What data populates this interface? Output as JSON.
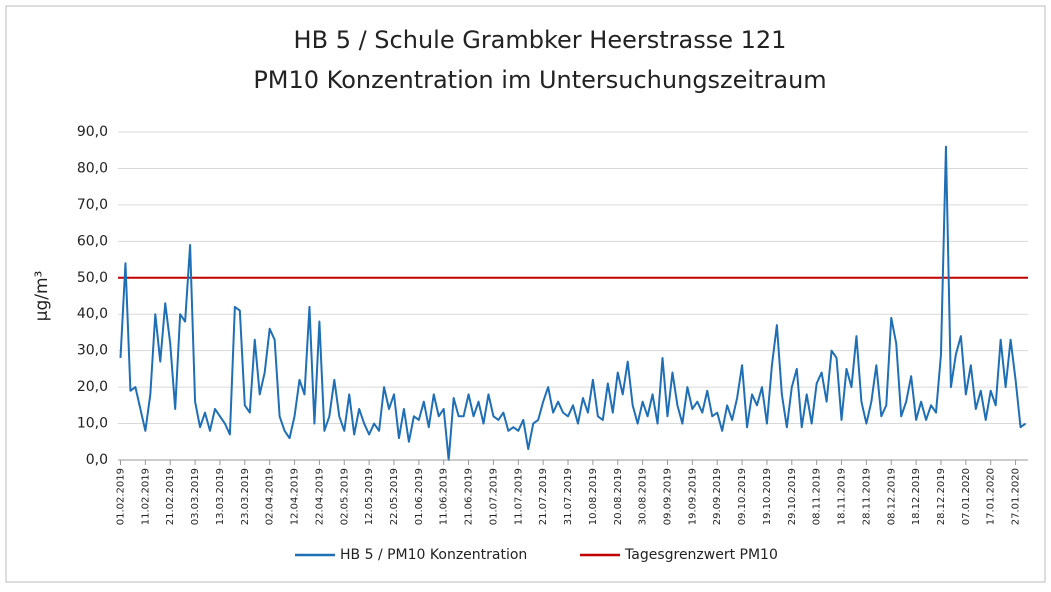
{
  "chart_data": {
    "type": "line",
    "title": "HB 5 / Schule Grambker Heerstrasse 121",
    "subtitle": "PM10 Konzentration im Untersuchungszeitraum",
    "ylabel": "µg/m³",
    "ylim": [
      0,
      90
    ],
    "yticks": [
      {
        "value": 0,
        "label": "0,0"
      },
      {
        "value": 10,
        "label": "10,0"
      },
      {
        "value": 20,
        "label": "20,0"
      },
      {
        "value": 30,
        "label": "30,0"
      },
      {
        "value": 40,
        "label": "40,0"
      },
      {
        "value": 50,
        "label": "50,0"
      },
      {
        "value": 60,
        "label": "60,0"
      },
      {
        "value": 70,
        "label": "70,0"
      },
      {
        "value": 80,
        "label": "80,0"
      },
      {
        "value": 90,
        "label": "90,0"
      }
    ],
    "grid": true,
    "legend": "bottom",
    "categories": [
      "01.02.2019",
      null,
      null,
      null,
      null,
      "11.02.2019",
      null,
      null,
      null,
      null,
      "21.02.2019",
      null,
      null,
      null,
      null,
      "03.03.2019",
      null,
      null,
      null,
      null,
      "13.03.2019",
      null,
      null,
      null,
      null,
      "23.03.2019",
      null,
      null,
      null,
      null,
      "02.04.2019",
      null,
      null,
      null,
      null,
      "12.04.2019",
      null,
      null,
      null,
      null,
      "22.04.2019",
      null,
      null,
      null,
      null,
      "02.05.2019",
      null,
      null,
      null,
      null,
      "12.05.2019",
      null,
      null,
      null,
      null,
      "22.05.2019",
      null,
      null,
      null,
      null,
      "01.06.2019",
      null,
      null,
      null,
      null,
      "11.06.2019",
      null,
      null,
      null,
      null,
      "21.06.2019",
      null,
      null,
      null,
      null,
      "01.07.2019",
      null,
      null,
      null,
      null,
      "11.07.2019",
      null,
      null,
      null,
      null,
      "21.07.2019",
      null,
      null,
      null,
      null,
      "31.07.2019",
      null,
      null,
      null,
      null,
      "10.08.2019",
      null,
      null,
      null,
      null,
      "20.08.2019",
      null,
      null,
      null,
      null,
      "30.08.2019",
      null,
      null,
      null,
      null,
      "09.09.2019",
      null,
      null,
      null,
      null,
      "19.09.2019",
      null,
      null,
      null,
      null,
      "29.09.2019",
      null,
      null,
      null,
      null,
      "09.10.2019",
      null,
      null,
      null,
      null,
      "19.10.2019",
      null,
      null,
      null,
      null,
      "29.10.2019",
      null,
      null,
      null,
      null,
      "08.11.2019",
      null,
      null,
      null,
      null,
      "18.11.2019",
      null,
      null,
      null,
      null,
      "28.11.2019",
      null,
      null,
      null,
      null,
      "08.12.2019",
      null,
      null,
      null,
      null,
      "18.12.2019",
      null,
      null,
      null,
      null,
      "28.12.2019",
      null,
      null,
      null,
      null,
      "07.01.2020",
      null,
      null,
      null,
      null,
      "17.01.2020",
      null,
      null,
      null,
      null,
      "27.01.2020",
      null,
      null
    ],
    "series": [
      {
        "name": "HB 5 / PM10 Konzentration",
        "color": "#1f6fb5",
        "values": [
          28,
          54,
          19,
          20,
          14,
          8,
          18,
          40,
          27,
          43,
          32,
          14,
          40,
          38,
          59,
          16,
          9,
          13,
          8,
          14,
          12,
          10,
          7,
          42,
          41,
          15,
          13,
          33,
          18,
          24,
          36,
          33,
          12,
          8,
          6,
          12,
          22,
          18,
          42,
          10,
          38,
          8,
          12,
          22,
          12,
          8,
          18,
          7,
          14,
          10,
          7,
          10,
          8,
          20,
          14,
          18,
          6,
          14,
          5,
          12,
          11,
          16,
          9,
          18,
          12,
          14,
          0,
          17,
          12,
          12,
          18,
          12,
          16,
          10,
          18,
          12,
          11,
          13,
          8,
          9,
          8,
          11,
          3,
          10,
          11,
          16,
          20,
          13,
          16,
          13,
          12,
          15,
          10,
          17,
          13,
          22,
          12,
          11,
          21,
          13,
          24,
          18,
          27,
          15,
          10,
          16,
          12,
          18,
          10,
          28,
          12,
          24,
          15,
          10,
          20,
          14,
          16,
          13,
          19,
          12,
          13,
          8,
          15,
          11,
          17,
          26,
          9,
          18,
          15,
          20,
          10,
          26,
          37,
          18,
          9,
          20,
          25,
          9,
          18,
          10,
          21,
          24,
          16,
          30,
          28,
          11,
          25,
          20,
          34,
          16,
          10,
          16,
          26,
          12,
          15,
          39,
          32,
          12,
          16,
          23,
          11,
          16,
          11,
          15,
          13,
          29,
          86,
          20,
          29,
          34,
          18,
          26,
          14,
          19,
          11,
          19,
          15,
          33,
          20,
          33,
          22,
          9,
          10
        ]
      }
    ],
    "threshold": {
      "name": "Tagesgrenzwert PM10",
      "value": 50,
      "color": "#c00000"
    }
  }
}
